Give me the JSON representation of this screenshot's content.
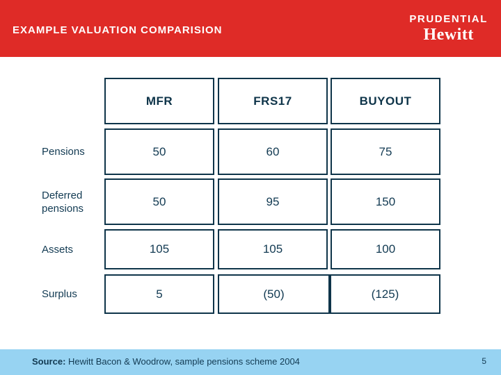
{
  "header": {
    "title": "EXAMPLE VALUATION COMPARISION",
    "brand_primary": "PRUDENTIAL",
    "brand_secondary": "Hewitt"
  },
  "table": {
    "columns": [
      "MFR",
      "FRS17",
      "BUYOUT"
    ],
    "rows": [
      {
        "label": "Pensions",
        "values": [
          "50",
          "60",
          "75"
        ]
      },
      {
        "label": "Deferred pensions",
        "values": [
          "50",
          "95",
          "150"
        ]
      },
      {
        "label": "Assets",
        "values": [
          "105",
          "105",
          "100"
        ]
      },
      {
        "label": "Surplus",
        "values": [
          "5",
          "(50)",
          "(125)"
        ]
      }
    ]
  },
  "footer": {
    "source_label": "Source:",
    "source_text": " Hewitt Bacon & Woodrow, sample pensions scheme 2004",
    "page_number": "5"
  },
  "colors": {
    "banner_red": "#DF2B27",
    "navy_border": "#0E3449",
    "navy_text": "#123A52",
    "footer_blue": "#97D3F2"
  }
}
